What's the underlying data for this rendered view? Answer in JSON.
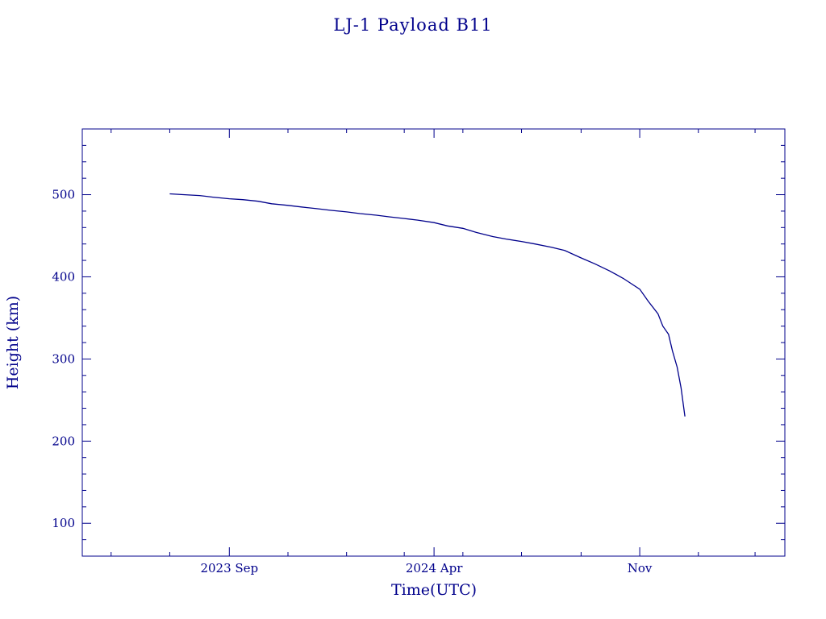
{
  "chart_data": {
    "type": "line",
    "title": "LJ-1 Payload B11",
    "xlabel": "Time(UTC)",
    "ylabel": "Height (km)",
    "x_scale": "time",
    "xlim": [
      "2023-04-01",
      "2025-04-01"
    ],
    "ylim": [
      60,
      580
    ],
    "x_ticks": [
      {
        "date": "2023-09-01",
        "label": "2023 Sep"
      },
      {
        "date": "2024-04-01",
        "label": "2024 Apr"
      },
      {
        "date": "2024-11-01",
        "label": "Nov"
      }
    ],
    "y_ticks": [
      100,
      200,
      300,
      400,
      500
    ],
    "grid": false,
    "legend": "none",
    "series": [
      {
        "color": "#00008b",
        "x": [
          "2023-07-01",
          "2023-07-15",
          "2023-08-01",
          "2023-08-15",
          "2023-09-01",
          "2023-09-15",
          "2023-10-01",
          "2023-10-15",
          "2023-11-01",
          "2023-11-15",
          "2023-12-01",
          "2023-12-15",
          "2024-01-01",
          "2024-01-15",
          "2024-02-01",
          "2024-02-15",
          "2024-03-01",
          "2024-03-15",
          "2024-04-01",
          "2024-04-15",
          "2024-05-01",
          "2024-05-15",
          "2024-06-01",
          "2024-06-15",
          "2024-07-01",
          "2024-07-15",
          "2024-08-01",
          "2024-08-15",
          "2024-09-01",
          "2024-09-15",
          "2024-10-01",
          "2024-10-15",
          "2024-11-01",
          "2024-11-10",
          "2024-11-20",
          "2024-11-25",
          "2024-12-01",
          "2024-12-05",
          "2024-12-10",
          "2024-12-14",
          "2024-12-18"
        ],
        "y": [
          501,
          500,
          499,
          497,
          495,
          494,
          492,
          489,
          487,
          485,
          483,
          481,
          479,
          477,
          475,
          473,
          471,
          469,
          466,
          462,
          459,
          454,
          449,
          446,
          443,
          440,
          436,
          432,
          423,
          416,
          407,
          398,
          385,
          370,
          355,
          340,
          330,
          310,
          290,
          265,
          230
        ]
      }
    ]
  }
}
